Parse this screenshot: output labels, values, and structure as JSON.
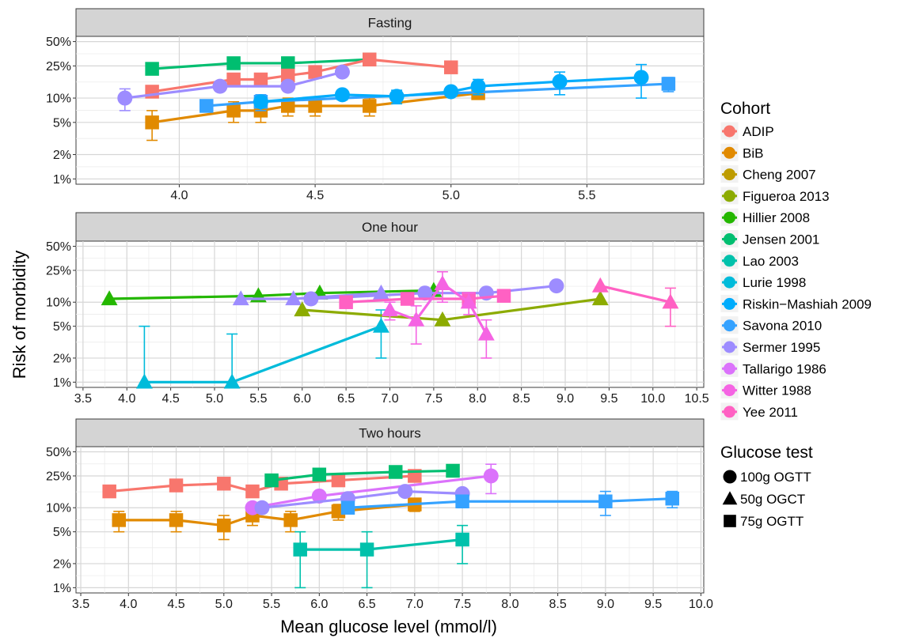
{
  "chart_data": {
    "type": "line",
    "xlabel": "Mean glucose level (mmol/l)",
    "ylabel": "Risk of morbidity",
    "y_scale": "log",
    "y_ticks": [
      1,
      2,
      5,
      10,
      25,
      50
    ],
    "y_tick_labels": [
      "1%",
      "2%",
      "5%",
      "10%",
      "25%",
      "50%"
    ],
    "grid": true,
    "legend_position": "right",
    "legend": {
      "cohort_title": "Cohort",
      "cohorts": [
        {
          "name": "ADIP",
          "color": "#F8766D"
        },
        {
          "name": "BiB",
          "color": "#E18A00"
        },
        {
          "name": "Cheng 2007",
          "color": "#BE9C00"
        },
        {
          "name": "Figueroa 2013",
          "color": "#8CAB00"
        },
        {
          "name": "Hillier 2008",
          "color": "#24B700"
        },
        {
          "name": "Jensen 2001",
          "color": "#00BE70"
        },
        {
          "name": "Lao 2003",
          "color": "#00C1AB"
        },
        {
          "name": "Lurie 1998",
          "color": "#00BBDA"
        },
        {
          "name": "Riskin−Mashiah 2009",
          "color": "#00ACFC"
        },
        {
          "name": "Savona 2010",
          "color": "#35A2FF"
        },
        {
          "name": "Sermer 1995",
          "color": "#9D8CFF"
        },
        {
          "name": "Tallarigo 1986",
          "color": "#DB72FB"
        },
        {
          "name": "Witter 1988",
          "color": "#F564E3"
        },
        {
          "name": "Yee 2011",
          "color": "#FF61C3"
        }
      ],
      "test_title": "Glucose test",
      "tests": [
        {
          "name": "100g OGTT",
          "shape": "circle"
        },
        {
          "name": "50g OGCT",
          "shape": "triangle"
        },
        {
          "name": "75g OGTT",
          "shape": "square"
        }
      ]
    },
    "panels": [
      {
        "title": "Fasting",
        "xlim": [
          3.62,
          5.93
        ],
        "x_ticks": [
          4.0,
          4.5,
          5.0,
          5.5
        ],
        "x_tick_labels": [
          "4.0",
          "4.5",
          "5.0",
          "5.5"
        ],
        "series": [
          {
            "cohort": "Jensen 2001",
            "shape": "square",
            "x": [
              3.9,
              4.2,
              4.4,
              4.7
            ],
            "y": [
              23,
              27,
              27,
              30
            ]
          },
          {
            "cohort": "ADIP",
            "shape": "square",
            "x": [
              3.9,
              4.2,
              4.3,
              4.4,
              4.5,
              4.7,
              5.0
            ],
            "y": [
              12,
              17,
              17,
              19,
              21,
              30,
              24
            ]
          },
          {
            "cohort": "Sermer 1995",
            "shape": "circle",
            "x": [
              3.8,
              4.15,
              4.4,
              4.6
            ],
            "y": [
              10,
              14,
              14,
              21
            ],
            "err": [
              3,
              1,
              0,
              0
            ]
          },
          {
            "cohort": "BiB",
            "shape": "square",
            "x": [
              3.9,
              4.2,
              4.3,
              4.4,
              4.5,
              4.7,
              5.1
            ],
            "y": [
              5,
              7,
              7,
              8,
              8,
              8,
              11.5
            ],
            "err": [
              2,
              2,
              2,
              2,
              2,
              2,
              1
            ]
          },
          {
            "cohort": "Savona 2010",
            "shape": "square",
            "x": [
              4.1,
              4.3,
              5.8
            ],
            "y": [
              8,
              9,
              15
            ],
            "err": [
              0,
              2,
              3
            ]
          },
          {
            "cohort": "Riskin−Mashiah 2009",
            "shape": "circle",
            "x": [
              4.3,
              4.6,
              4.8,
              5.0,
              5.1,
              5.4,
              5.7
            ],
            "y": [
              9,
              11,
              10.5,
              12,
              14,
              16,
              18
            ],
            "err": [
              1,
              1.5,
              2,
              1,
              3,
              5,
              8
            ]
          }
        ]
      },
      {
        "title": "One hour",
        "xlim": [
          3.42,
          10.58
        ],
        "x_ticks": [
          3.5,
          4.0,
          4.5,
          5.0,
          5.5,
          6.0,
          6.5,
          7.0,
          7.5,
          8.0,
          8.5,
          9.0,
          9.5,
          10.0,
          10.5
        ],
        "x_tick_labels": [
          "3.5",
          "4.0",
          "4.5",
          "5.0",
          "5.5",
          "6.0",
          "6.5",
          "7.0",
          "7.5",
          "8.0",
          "8.5",
          "9.0",
          "9.5",
          "10.0",
          "10.5"
        ],
        "series": [
          {
            "cohort": "Hillier 2008",
            "shape": "triangle",
            "x": [
              3.8,
              5.5,
              6.2,
              7.5
            ],
            "y": [
              11,
              12,
              13,
              14
            ]
          },
          {
            "cohort": "Sermer 1995",
            "shape": "triangle",
            "x": [
              5.3,
              5.9,
              6.9
            ],
            "y": [
              11,
              11,
              13
            ]
          },
          {
            "cohort": "Lurie 1998",
            "shape": "triangle",
            "x": [
              4.2,
              5.2,
              6.9
            ],
            "y": [
              1,
              1,
              5
            ],
            "err": [
              4,
              3,
              3
            ]
          },
          {
            "cohort": "Figueroa 2013",
            "shape": "triangle",
            "x": [
              6.0,
              7.6,
              9.4
            ],
            "y": [
              8,
              6,
              11
            ]
          },
          {
            "cohort": "Sermer 1995",
            "shape": "circle",
            "x": [
              6.1,
              7.4,
              8.1,
              8.9
            ],
            "y": [
              11,
              13,
              13,
              16
            ]
          },
          {
            "cohort": "Yee 2011",
            "shape": "square",
            "x": [
              6.5,
              7.2,
              7.9,
              8.3
            ],
            "y": [
              10,
              11,
              11,
              12
            ]
          },
          {
            "cohort": "Witter 1988",
            "shape": "triangle",
            "x": [
              7.0,
              7.3,
              7.6,
              7.9,
              8.1
            ],
            "y": [
              8,
              6,
              17,
              10,
              4
            ],
            "err": [
              2,
              3,
              7,
              3,
              2
            ]
          },
          {
            "cohort": "Yee 2011",
            "shape": "triangle",
            "x": [
              9.4,
              10.2
            ],
            "y": [
              16,
              10
            ],
            "err": [
              0,
              5
            ]
          }
        ]
      },
      {
        "title": "Two hours",
        "xlim": [
          3.45,
          10.03
        ],
        "x_ticks": [
          3.5,
          4.0,
          4.5,
          5.0,
          5.5,
          6.0,
          6.5,
          7.0,
          7.5,
          8.0,
          8.5,
          9.0,
          9.5,
          10.0
        ],
        "x_tick_labels": [
          "3.5",
          "4.0",
          "4.5",
          "5.0",
          "5.5",
          "6.0",
          "6.5",
          "7.0",
          "7.5",
          "8.0",
          "8.5",
          "9.0",
          "9.5",
          "10.0"
        ],
        "series": [
          {
            "cohort": "ADIP",
            "shape": "square",
            "x": [
              3.8,
              4.5,
              5.0,
              5.3,
              5.6,
              6.2,
              7.0
            ],
            "y": [
              16,
              19,
              20,
              16,
              20,
              22,
              25
            ]
          },
          {
            "cohort": "Jensen 2001",
            "shape": "square",
            "x": [
              5.5,
              6.0,
              6.8,
              7.4
            ],
            "y": [
              22,
              26,
              28,
              29
            ]
          },
          {
            "cohort": "BiB",
            "shape": "square",
            "x": [
              3.9,
              4.5,
              5.0,
              5.3,
              5.7,
              6.2,
              7.0
            ],
            "y": [
              7,
              7,
              6,
              8,
              7,
              9,
              11
            ],
            "err": [
              2,
              2,
              2,
              2,
              2,
              2,
              2
            ]
          },
          {
            "cohort": "Tallarigo 1986",
            "shape": "circle",
            "x": [
              5.3,
              6.0,
              7.8
            ],
            "y": [
              10,
              14,
              25
            ],
            "err": [
              0,
              0,
              10
            ]
          },
          {
            "cohort": "Sermer 1995",
            "shape": "circle",
            "x": [
              5.4,
              6.3,
              6.9,
              7.5
            ],
            "y": [
              10,
              13,
              16,
              15
            ]
          },
          {
            "cohort": "Savona 2010",
            "shape": "square",
            "x": [
              6.3,
              7.5,
              9.0,
              9.7
            ],
            "y": [
              10,
              12,
              12,
              13
            ],
            "err": [
              1.5,
              2,
              4,
              3
            ]
          },
          {
            "cohort": "Lao 2003",
            "shape": "square",
            "x": [
              5.8,
              6.5,
              7.5
            ],
            "y": [
              3,
              3,
              4
            ],
            "err": [
              2,
              2,
              2
            ]
          }
        ]
      }
    ]
  }
}
